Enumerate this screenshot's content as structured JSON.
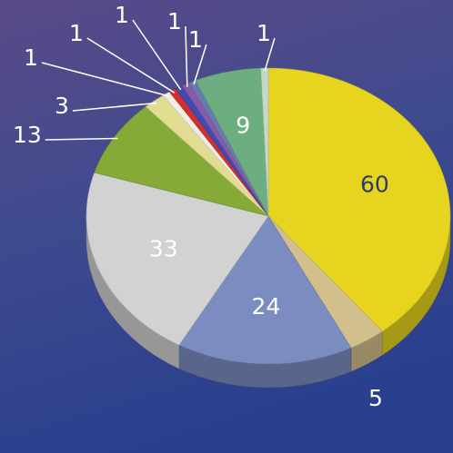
{
  "chart_data": {
    "type": "pie",
    "values": [
      60,
      5,
      24,
      33,
      13,
      3,
      1,
      1,
      1,
      1,
      1,
      9,
      1
    ],
    "colors": [
      "#e6d41e",
      "#d2bf8c",
      "#7b8cc0",
      "#d2d2d2",
      "#86aa38",
      "#e2dc92",
      "#eeeee6",
      "#d03030",
      "#3c4cb0",
      "#8a5aa8",
      "#6a7ab0",
      "#6cae80",
      "#c8d8c8"
    ]
  }
}
